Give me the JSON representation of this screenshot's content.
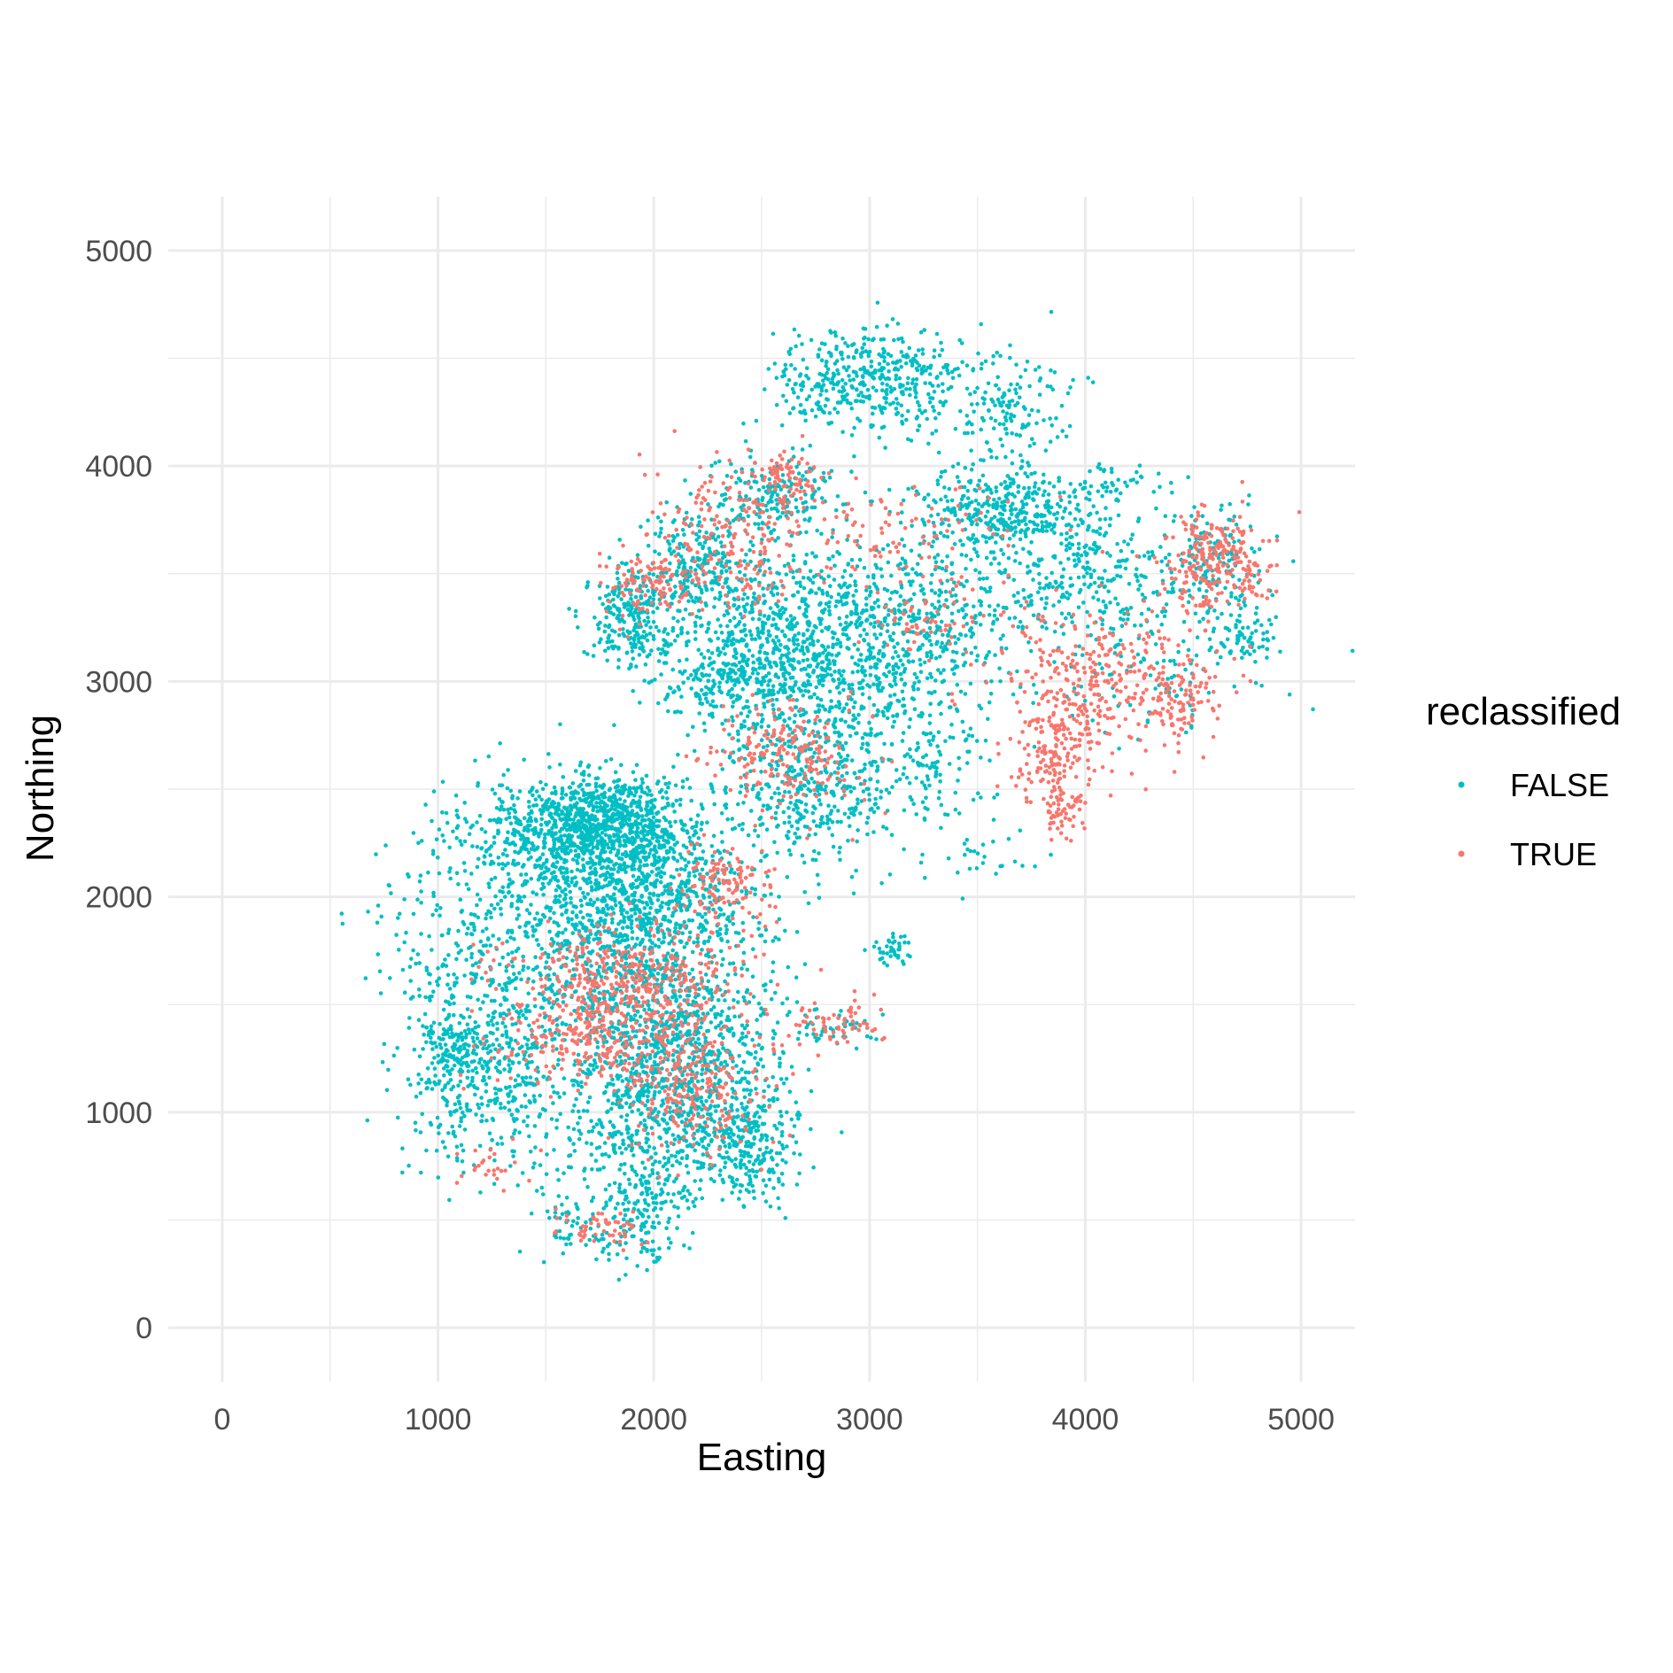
{
  "chart_data": {
    "type": "scatter",
    "xlabel": "Easting",
    "ylabel": "Northing",
    "xlim": [
      -250,
      5250
    ],
    "ylim": [
      -250,
      5250
    ],
    "x_ticks": [
      0,
      1000,
      2000,
      3000,
      4000,
      5000
    ],
    "y_ticks": [
      0,
      1000,
      2000,
      3000,
      4000,
      5000
    ],
    "x_tick_labels": [
      "0",
      "1000",
      "2000",
      "3000",
      "4000",
      "5000"
    ],
    "y_tick_labels": [
      "0",
      "1000",
      "2000",
      "3000",
      "4000",
      "5000"
    ],
    "grid": true,
    "legend": {
      "title": "reclassified",
      "placement": "right",
      "entries": [
        {
          "label": "FALSE",
          "color": "#00BFC4"
        },
        {
          "label": "TRUE",
          "color": "#F8766D"
        }
      ]
    },
    "series": [
      {
        "name": "FALSE",
        "color": "#00BFC4",
        "clusters": [
          {
            "x": 1700,
            "y": 2300,
            "sx": 280,
            "sy": 120,
            "n": 900
          },
          {
            "x": 1900,
            "y": 1700,
            "sx": 250,
            "sy": 350,
            "n": 1000
          },
          {
            "x": 2050,
            "y": 1000,
            "sx": 260,
            "sy": 220,
            "n": 700
          },
          {
            "x": 1250,
            "y": 1750,
            "sx": 250,
            "sy": 350,
            "n": 500
          },
          {
            "x": 1200,
            "y": 1150,
            "sx": 180,
            "sy": 200,
            "n": 300
          },
          {
            "x": 2450,
            "y": 850,
            "sx": 100,
            "sy": 120,
            "n": 200
          },
          {
            "x": 1950,
            "y": 550,
            "sx": 90,
            "sy": 120,
            "n": 150
          },
          {
            "x": 1650,
            "y": 450,
            "sx": 100,
            "sy": 80,
            "n": 60
          },
          {
            "x": 1100,
            "y": 1300,
            "sx": 90,
            "sy": 60,
            "n": 100
          },
          {
            "x": 2000,
            "y": 2000,
            "sx": 300,
            "sy": 150,
            "n": 400
          },
          {
            "x": 2250,
            "y": 1350,
            "sx": 200,
            "sy": 200,
            "n": 300
          },
          {
            "x": 1800,
            "y": 2400,
            "sx": 150,
            "sy": 80,
            "n": 250
          },
          {
            "x": 3000,
            "y": 4400,
            "sx": 220,
            "sy": 120,
            "n": 450
          },
          {
            "x": 3650,
            "y": 4250,
            "sx": 150,
            "sy": 150,
            "n": 150
          },
          {
            "x": 2550,
            "y": 3850,
            "sx": 150,
            "sy": 100,
            "n": 200
          },
          {
            "x": 2200,
            "y": 3550,
            "sx": 120,
            "sy": 120,
            "n": 200
          },
          {
            "x": 1900,
            "y": 3300,
            "sx": 100,
            "sy": 120,
            "n": 250
          },
          {
            "x": 3600,
            "y": 3800,
            "sx": 200,
            "sy": 90,
            "n": 350
          },
          {
            "x": 3100,
            "y": 3250,
            "sx": 300,
            "sy": 200,
            "n": 700
          },
          {
            "x": 2500,
            "y": 3200,
            "sx": 250,
            "sy": 200,
            "n": 500
          },
          {
            "x": 2800,
            "y": 2700,
            "sx": 250,
            "sy": 250,
            "n": 400
          },
          {
            "x": 3950,
            "y": 3500,
            "sx": 250,
            "sy": 150,
            "n": 300
          },
          {
            "x": 2700,
            "y": 2450,
            "sx": 200,
            "sy": 120,
            "n": 200
          },
          {
            "x": 2350,
            "y": 3000,
            "sx": 180,
            "sy": 100,
            "n": 200
          },
          {
            "x": 3300,
            "y": 2600,
            "sx": 100,
            "sy": 150,
            "n": 80
          },
          {
            "x": 3550,
            "y": 2200,
            "sx": 120,
            "sy": 100,
            "n": 25
          },
          {
            "x": 4100,
            "y": 3900,
            "sx": 120,
            "sy": 60,
            "n": 50
          },
          {
            "x": 4600,
            "y": 3550,
            "sx": 120,
            "sy": 150,
            "n": 150
          },
          {
            "x": 4750,
            "y": 3200,
            "sx": 80,
            "sy": 60,
            "n": 60
          },
          {
            "x": 4300,
            "y": 3100,
            "sx": 250,
            "sy": 200,
            "n": 120
          },
          {
            "x": 3100,
            "y": 1750,
            "sx": 40,
            "sy": 40,
            "n": 40
          },
          {
            "x": 2850,
            "y": 1400,
            "sx": 120,
            "sy": 50,
            "n": 40
          }
        ]
      },
      {
        "name": "TRUE",
        "color": "#F8766D",
        "clusters": [
          {
            "x": 1850,
            "y": 1600,
            "sx": 280,
            "sy": 130,
            "n": 450
          },
          {
            "x": 1800,
            "y": 1300,
            "sx": 280,
            "sy": 100,
            "n": 250
          },
          {
            "x": 2200,
            "y": 1100,
            "sx": 180,
            "sy": 150,
            "n": 200
          },
          {
            "x": 2350,
            "y": 2050,
            "sx": 120,
            "sy": 90,
            "n": 120
          },
          {
            "x": 1750,
            "y": 450,
            "sx": 100,
            "sy": 50,
            "n": 50
          },
          {
            "x": 1250,
            "y": 750,
            "sx": 80,
            "sy": 60,
            "n": 25
          },
          {
            "x": 2850,
            "y": 1400,
            "sx": 120,
            "sy": 60,
            "n": 60
          },
          {
            "x": 2600,
            "y": 2650,
            "sx": 180,
            "sy": 120,
            "n": 200
          },
          {
            "x": 4100,
            "y": 3000,
            "sx": 250,
            "sy": 180,
            "n": 350
          },
          {
            "x": 3850,
            "y": 2650,
            "sx": 120,
            "sy": 120,
            "n": 150
          },
          {
            "x": 3900,
            "y": 2400,
            "sx": 50,
            "sy": 60,
            "n": 50
          },
          {
            "x": 4600,
            "y": 3550,
            "sx": 120,
            "sy": 120,
            "n": 250
          },
          {
            "x": 4450,
            "y": 2900,
            "sx": 80,
            "sy": 80,
            "n": 60
          },
          {
            "x": 2350,
            "y": 3650,
            "sx": 200,
            "sy": 150,
            "n": 200
          },
          {
            "x": 2000,
            "y": 3450,
            "sx": 120,
            "sy": 80,
            "n": 100
          },
          {
            "x": 2600,
            "y": 3950,
            "sx": 80,
            "sy": 60,
            "n": 80
          },
          {
            "x": 3100,
            "y": 3700,
            "sx": 250,
            "sy": 120,
            "n": 100
          },
          {
            "x": 3250,
            "y": 3300,
            "sx": 120,
            "sy": 80,
            "n": 60
          }
        ]
      }
    ]
  }
}
